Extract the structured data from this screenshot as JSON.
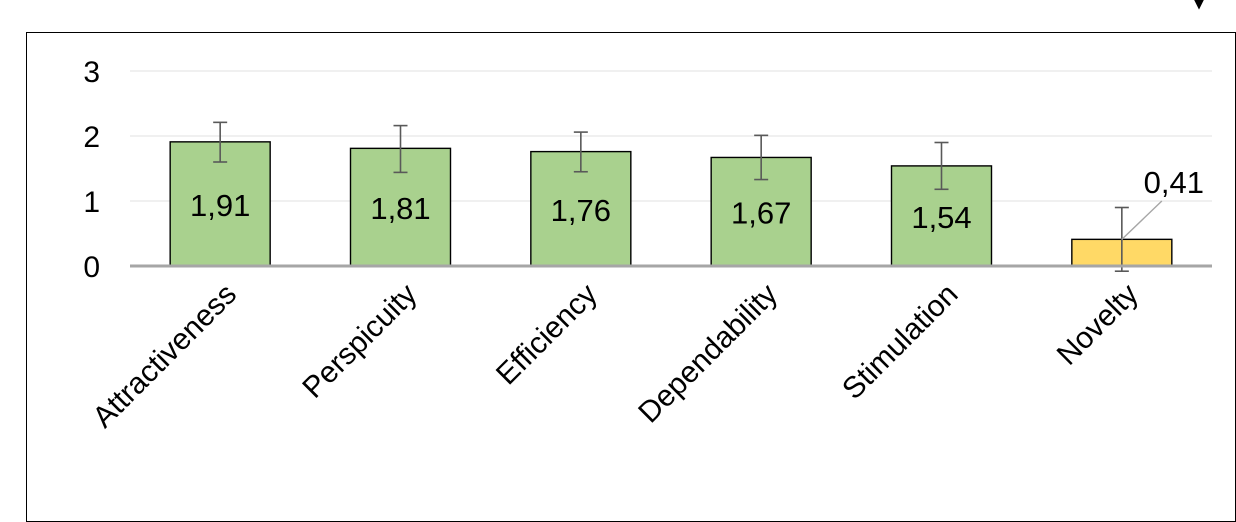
{
  "chart_data": {
    "type": "bar",
    "categories": [
      "Attractiveness",
      "Perspicuity",
      "Efficiency",
      "Dependability",
      "Stimulation",
      "Novelty"
    ],
    "values": [
      1.91,
      1.81,
      1.76,
      1.67,
      1.54,
      0.41
    ],
    "value_labels": [
      "1,91",
      "1,81",
      "1,76",
      "1,67",
      "1,54",
      "0,41"
    ],
    "error_low": [
      1.6,
      1.44,
      1.45,
      1.33,
      1.18,
      -0.08
    ],
    "error_high": [
      2.21,
      2.16,
      2.06,
      2.01,
      1.9,
      0.9
    ],
    "bar_colors": [
      "#a9d18e",
      "#a9d18e",
      "#a9d18e",
      "#a9d18e",
      "#a9d18e",
      "#ffd966"
    ],
    "yticks": [
      0,
      1,
      2,
      3
    ],
    "ytick_labels": [
      "0",
      "1",
      "2",
      "3"
    ],
    "ylim": [
      0,
      3
    ],
    "title": "",
    "xlabel": "",
    "ylabel": "",
    "grid": true,
    "legend": "none"
  }
}
